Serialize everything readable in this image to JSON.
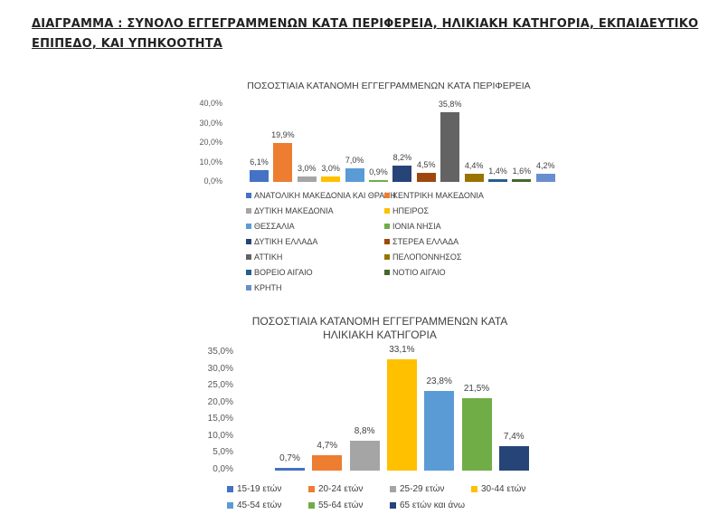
{
  "heading": {
    "line1": "ΔΙΑΓΡΑΜΜΑ : ΣΥΝΟΛΟ ΕΓΓΕΓΡΑΜΜΕΝΩΝ ΚΑΤΑ ΠΕΡΙΦΕΡΕΙΑ, ΗΛΙΚΙΑΚΗ ΚΑΤΗΓΟΡΙΑ, ΕΚΠΑΙΔΕΥΤΙΚΟ",
    "line2": "ΕΠΙΠΕΔΟ, ΚΑΙ ΥΠΗΚΟΟΤΗΤΑ"
  },
  "chart_data": [
    {
      "type": "bar",
      "title": "ΠΟΣΟΣΤΙΑΙΑ ΚΑΤΑΝΟΜΗ ΕΓΓΕΓΡΑΜΜΕΝΩΝ ΚΑΤΑ ΠΕΡΙΦΕΡΕΙΑ",
      "xlabel": "",
      "ylabel": "",
      "ylim": [
        0,
        40
      ],
      "yticks": [
        "40,0%",
        "30,0%",
        "20,0%",
        "10,0%",
        "0,0%"
      ],
      "grid": false,
      "legend_position": "bottom",
      "categories": [
        "ΑΝΑΤΟΛΙΚΗ ΜΑΚΕΔΟΝΙΑ ΚΑΙ ΘΡΑΚΗ",
        "ΚΕΝΤΡΙΚΗ ΜΑΚΕΔΟΝΙΑ",
        "ΔΥΤΙΚΗ ΜΑΚΕΔΟΝΙΑ",
        "ΗΠΕΙΡΟΣ",
        "ΘΕΣΣΑΛΙΑ",
        "ΙΟΝΙΑ ΝΗΣΙΑ",
        "ΔΥΤΙΚΗ ΕΛΛΑΔΑ",
        "ΣΤΕΡΕΑ ΕΛΛΑΔΑ",
        "ΑΤΤΙΚΗ",
        "ΠΕΛΟΠΟΝΝΗΣΟΣ",
        "ΒΟΡΕΙΟ ΑΙΓΑΙΟ",
        "ΝΟΤΙΟ ΑΙΓΑΙΟ",
        "ΚΡΗΤΗ"
      ],
      "values": [
        6.1,
        19.9,
        3.0,
        3.0,
        7.0,
        0.9,
        8.2,
        4.5,
        35.8,
        4.4,
        1.4,
        1.6,
        4.2
      ],
      "labels": [
        "6,1%",
        "19,9%",
        "3,0%",
        "3,0%",
        "7,0%",
        "0,9%",
        "8,2%",
        "4,5%",
        "35,8%",
        "4,4%",
        "1,4%",
        "1,6%",
        "4,2%"
      ],
      "colors": [
        "#4472c4",
        "#ed7d31",
        "#a5a5a5",
        "#ffc000",
        "#5b9bd5",
        "#70ad47",
        "#264478",
        "#9e480e",
        "#636363",
        "#997300",
        "#255e91",
        "#43682b",
        "#698ed0"
      ]
    },
    {
      "type": "bar",
      "title": "ΠΟΣΟΣΤΙΑΙΑ ΚΑΤΑΝΟΜΗ ΕΓΓΕΓΡΑΜΜΕΝΩΝ  ΚΑΤΑ ΗΛΙΚΙΑΚΗ ΚΑΤΗΓΟΡΙΑ",
      "title_line1": "ΠΟΣΟΣΤΙΑΙΑ ΚΑΤΑΝΟΜΗ ΕΓΓΕΓΡΑΜΜΕΝΩΝ  ΚΑΤΑ",
      "title_line2": "ΗΛΙΚΙΑΚΗ ΚΑΤΗΓΟΡΙΑ",
      "xlabel": "",
      "ylabel": "",
      "ylim": [
        0,
        35
      ],
      "yticks": [
        "35,0%",
        "30,0%",
        "25,0%",
        "20,0%",
        "15,0%",
        "10,0%",
        "5,0%",
        "0,0%"
      ],
      "grid": false,
      "legend_position": "bottom",
      "categories": [
        "15-19 ετών",
        "20-24 ετών",
        "25-29 ετών",
        "30-44 ετών",
        "45-54 ετών",
        "55-64 ετών",
        "65 ετών και άνω"
      ],
      "values": [
        0.7,
        4.7,
        8.8,
        33.1,
        23.8,
        21.5,
        7.4
      ],
      "labels": [
        "0,7%",
        "4,7%",
        "8,8%",
        "33,1%",
        "23,8%",
        "21,5%",
        "7,4%"
      ],
      "colors": [
        "#4472c4",
        "#ed7d31",
        "#a5a5a5",
        "#ffc000",
        "#5b9bd5",
        "#70ad47",
        "#264478"
      ]
    }
  ]
}
